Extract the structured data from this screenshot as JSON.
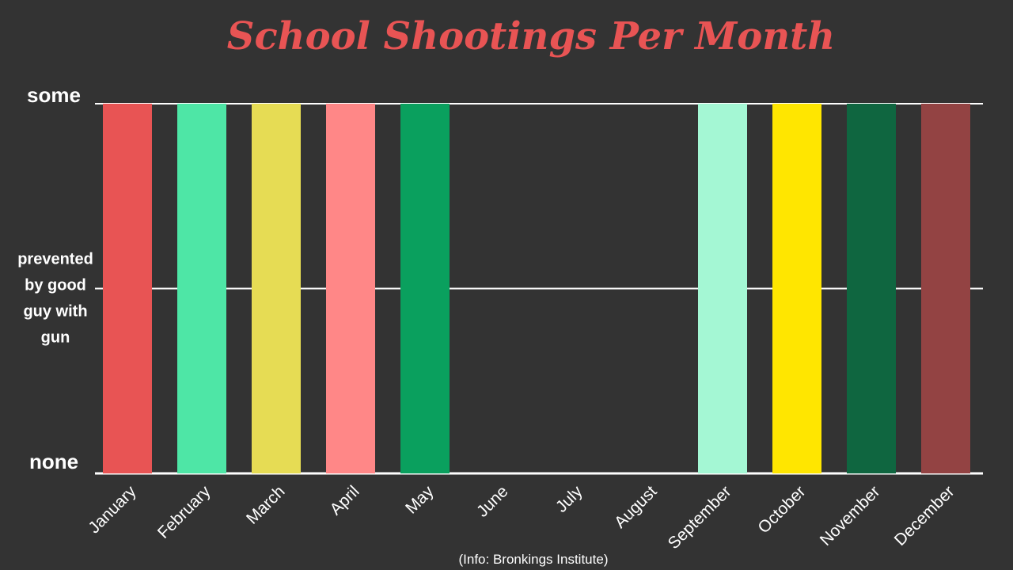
{
  "chart_data": {
    "type": "bar",
    "title": "School Shootings Per Month",
    "source": "(Info: Bronkings Institute)",
    "categories": [
      "January",
      "February",
      "March",
      "April",
      "May",
      "June",
      "July",
      "August",
      "September",
      "October",
      "November",
      "December"
    ],
    "values": [
      1,
      1,
      1,
      1,
      1,
      0,
      0,
      0,
      1,
      1,
      1,
      1
    ],
    "ylim": [
      0,
      1
    ],
    "y_ticks": [
      {
        "value": 1,
        "label": "some"
      },
      {
        "value": 0.5,
        "label": "prevented by good guy with gun"
      },
      {
        "value": 0,
        "label": "none"
      }
    ],
    "grid": true,
    "colors": [
      "#e85454",
      "#4ee6a6",
      "#e6dc54",
      "#ff8787",
      "#0aa05e",
      "#333333",
      "#333333",
      "#333333",
      "#a4f7d4",
      "#ffe600",
      "#0f6640",
      "#934343"
    ],
    "title_color": "#e85454",
    "background": "#333333",
    "grid_color": "#ffffff"
  }
}
